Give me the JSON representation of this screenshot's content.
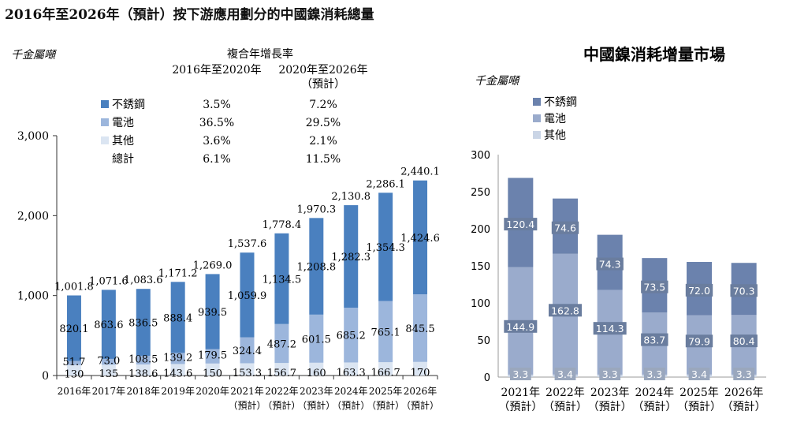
{
  "title": "2016年至2026年（預計）按下游應用劃分的中國鎳消耗總量",
  "colors": {
    "dark": "#4a80bf",
    "mid": "#9cb6dc",
    "light": "#dbe5f2",
    "right_dark": "#6b82ad",
    "right_mid": "#9aabcc",
    "right_light": "#cad5e6",
    "label_box": "#6a7d9e"
  },
  "cagr_table": {
    "header": "複合年增長率",
    "col1": "2016年至2020年",
    "col2": "2020年至2026年",
    "col2_sub": "（預計）",
    "rows": [
      {
        "label": "不銹鋼",
        "v1": "3.5%",
        "v2": "7.2%"
      },
      {
        "label": "電池",
        "v1": "36.5%",
        "v2": "29.5%"
      },
      {
        "label": "其他",
        "v1": "3.6%",
        "v2": "2.1%"
      },
      {
        "label": "總計",
        "v1": "6.1%",
        "v2": "11.5%"
      }
    ]
  },
  "chart_data": [
    {
      "type": "bar",
      "stacked": true,
      "title": "2016年至2026年（預計）按下游應用劃分的中國鎳消耗總量",
      "ylabel": "千金屬噸",
      "ylim": [
        0,
        3000
      ],
      "yticks": [
        "0",
        "1,000",
        "2,000",
        "3,000"
      ],
      "categories": [
        "2016年",
        "2017年",
        "2018年",
        "2019年",
        "2020年",
        "2021年",
        "2022年",
        "2023年",
        "2024年",
        "2025年",
        "2026年"
      ],
      "category_sub": [
        "",
        "",
        "",
        "",
        "",
        "（預計）",
        "（預計）",
        "（預計）",
        "（預計）",
        "（預計）",
        "（預計）"
      ],
      "series": [
        {
          "name": "其他",
          "values": [
            130,
            135,
            138.6,
            143.6,
            150,
            153.3,
            156.7,
            160,
            163.3,
            166.7,
            170
          ],
          "labels": [
            "130",
            "135",
            "138.6",
            "143.6",
            "150",
            "153.3",
            "156.7",
            "160",
            "163.3",
            "166.7",
            "170"
          ]
        },
        {
          "name": "電池",
          "values": [
            51.7,
            73.0,
            108.5,
            139.2,
            179.5,
            324.4,
            487.2,
            601.5,
            685.2,
            765.1,
            845.5
          ],
          "labels": [
            "51.7",
            "73.0",
            "108.5",
            "139.2",
            "179.5",
            "324.4",
            "487.2",
            "601.5",
            "685.2",
            "765.1",
            "845.5"
          ]
        },
        {
          "name": "不銹鋼",
          "values": [
            820.1,
            863.6,
            836.5,
            888.4,
            939.5,
            1059.9,
            1134.5,
            1208.8,
            1282.3,
            1354.3,
            1424.6
          ],
          "labels": [
            "820.1",
            "863.6",
            "836.5",
            "888.4",
            "939.5",
            "1,059.9",
            "1,134.5",
            "1,208.8",
            "1,282.3",
            "1,354.3",
            "1,424.6"
          ]
        }
      ],
      "totals": [
        1001.8,
        1071.6,
        1083.6,
        1171.2,
        1269.0,
        1537.6,
        1778.4,
        1970.3,
        2130.8,
        2286.1,
        2440.1
      ],
      "total_labels": [
        "1,001.8",
        "1,071.6",
        "1,083.6",
        "1,171.2",
        "1,269.0",
        "1,537.6",
        "1,778.4",
        "1,970.3",
        "2,130.8",
        "2,286.1",
        "2,440.1"
      ],
      "legend": [
        "不銹鋼",
        "電池",
        "其他"
      ]
    },
    {
      "type": "bar",
      "stacked": true,
      "title": "中國鎳消耗增量市場",
      "ylabel": "千金屬噸",
      "ylim": [
        0,
        300
      ],
      "yticks": [
        "0",
        "50",
        "100",
        "150",
        "200",
        "250",
        "300"
      ],
      "categories": [
        "2021年",
        "2022年",
        "2023年",
        "2024年",
        "2025年",
        "2026年"
      ],
      "category_sub": [
        "（預計）",
        "（預計）",
        "（預計）",
        "（預計）",
        "（預計）",
        "（預計）"
      ],
      "series": [
        {
          "name": "其他",
          "values": [
            3.3,
            3.4,
            3.3,
            3.3,
            3.4,
            3.3
          ],
          "labels": [
            "3.3",
            "3.4",
            "3.3",
            "3.3",
            "3.4",
            "3.3"
          ]
        },
        {
          "name": "電池",
          "values": [
            144.9,
            162.8,
            114.3,
            83.7,
            79.9,
            80.4
          ],
          "labels": [
            "144.9",
            "162.8",
            "114.3",
            "83.7",
            "79.9",
            "80.4"
          ]
        },
        {
          "name": "不銹鋼",
          "values": [
            120.4,
            74.6,
            74.3,
            73.5,
            72.0,
            70.3
          ],
          "labels": [
            "120.4",
            "74.6",
            "74.3",
            "73.5",
            "72.0",
            "70.3"
          ]
        }
      ],
      "legend": [
        "不銹鋼",
        "電池",
        "其他"
      ]
    }
  ]
}
